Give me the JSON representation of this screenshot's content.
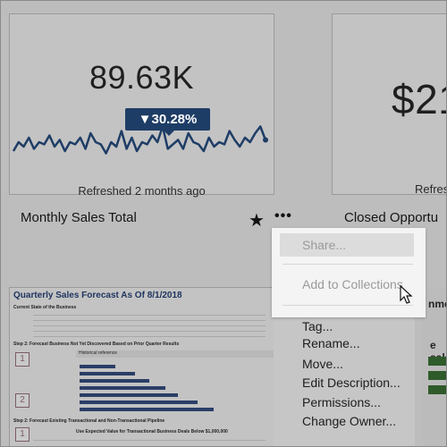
{
  "cards": [
    {
      "value": "89.63K",
      "delta": "▼30.28%",
      "refreshed": "Refreshed 2 months ago",
      "title": "Monthly Sales Total",
      "sparkline": [
        22,
        30,
        26,
        34,
        24,
        30,
        28,
        36,
        26,
        32,
        22,
        30,
        28,
        34,
        24,
        38,
        30,
        28,
        20,
        30,
        26,
        40,
        24,
        34,
        22,
        30,
        28,
        36,
        30,
        44,
        24,
        28,
        32,
        24,
        38,
        30,
        28,
        22,
        34,
        26,
        30,
        28,
        40,
        32,
        26,
        34,
        30,
        38,
        44,
        32
      ]
    },
    {
      "value": "$21",
      "refreshed": "Refres",
      "title": "Closed Opportu"
    }
  ],
  "menu": {
    "share": "Share...",
    "add_to_collections": "Add to Collections",
    "items": [
      "Tag...",
      "Rename...",
      "Move...",
      "Edit Description...",
      "Permissions...",
      "Change Owner..."
    ]
  },
  "report": {
    "title": "Quarterly Sales Forecast As Of 8/1/2018",
    "subtitle": "Current State of the Business",
    "step2": "Step 2: Forecast Business Not Yet Discovered Based on Prior Quarter Results",
    "step2_section": "Historical reference",
    "step3": "Step 2: Forecast Existing Transactional and Non-Transactional Pipeline",
    "step3_note": "Use Expected Value for Transactional Business Deals Below $1,000,000"
  },
  "right_fragments": {
    "a": "nmen",
    "b": "e sale"
  },
  "colors": {
    "delta_bg": "#1e3d66",
    "bars": "#2a3e66",
    "green": "#2f5a2a"
  },
  "icons": {
    "star": "star-icon",
    "more": "more-icon",
    "cursor": "cursor-icon"
  }
}
